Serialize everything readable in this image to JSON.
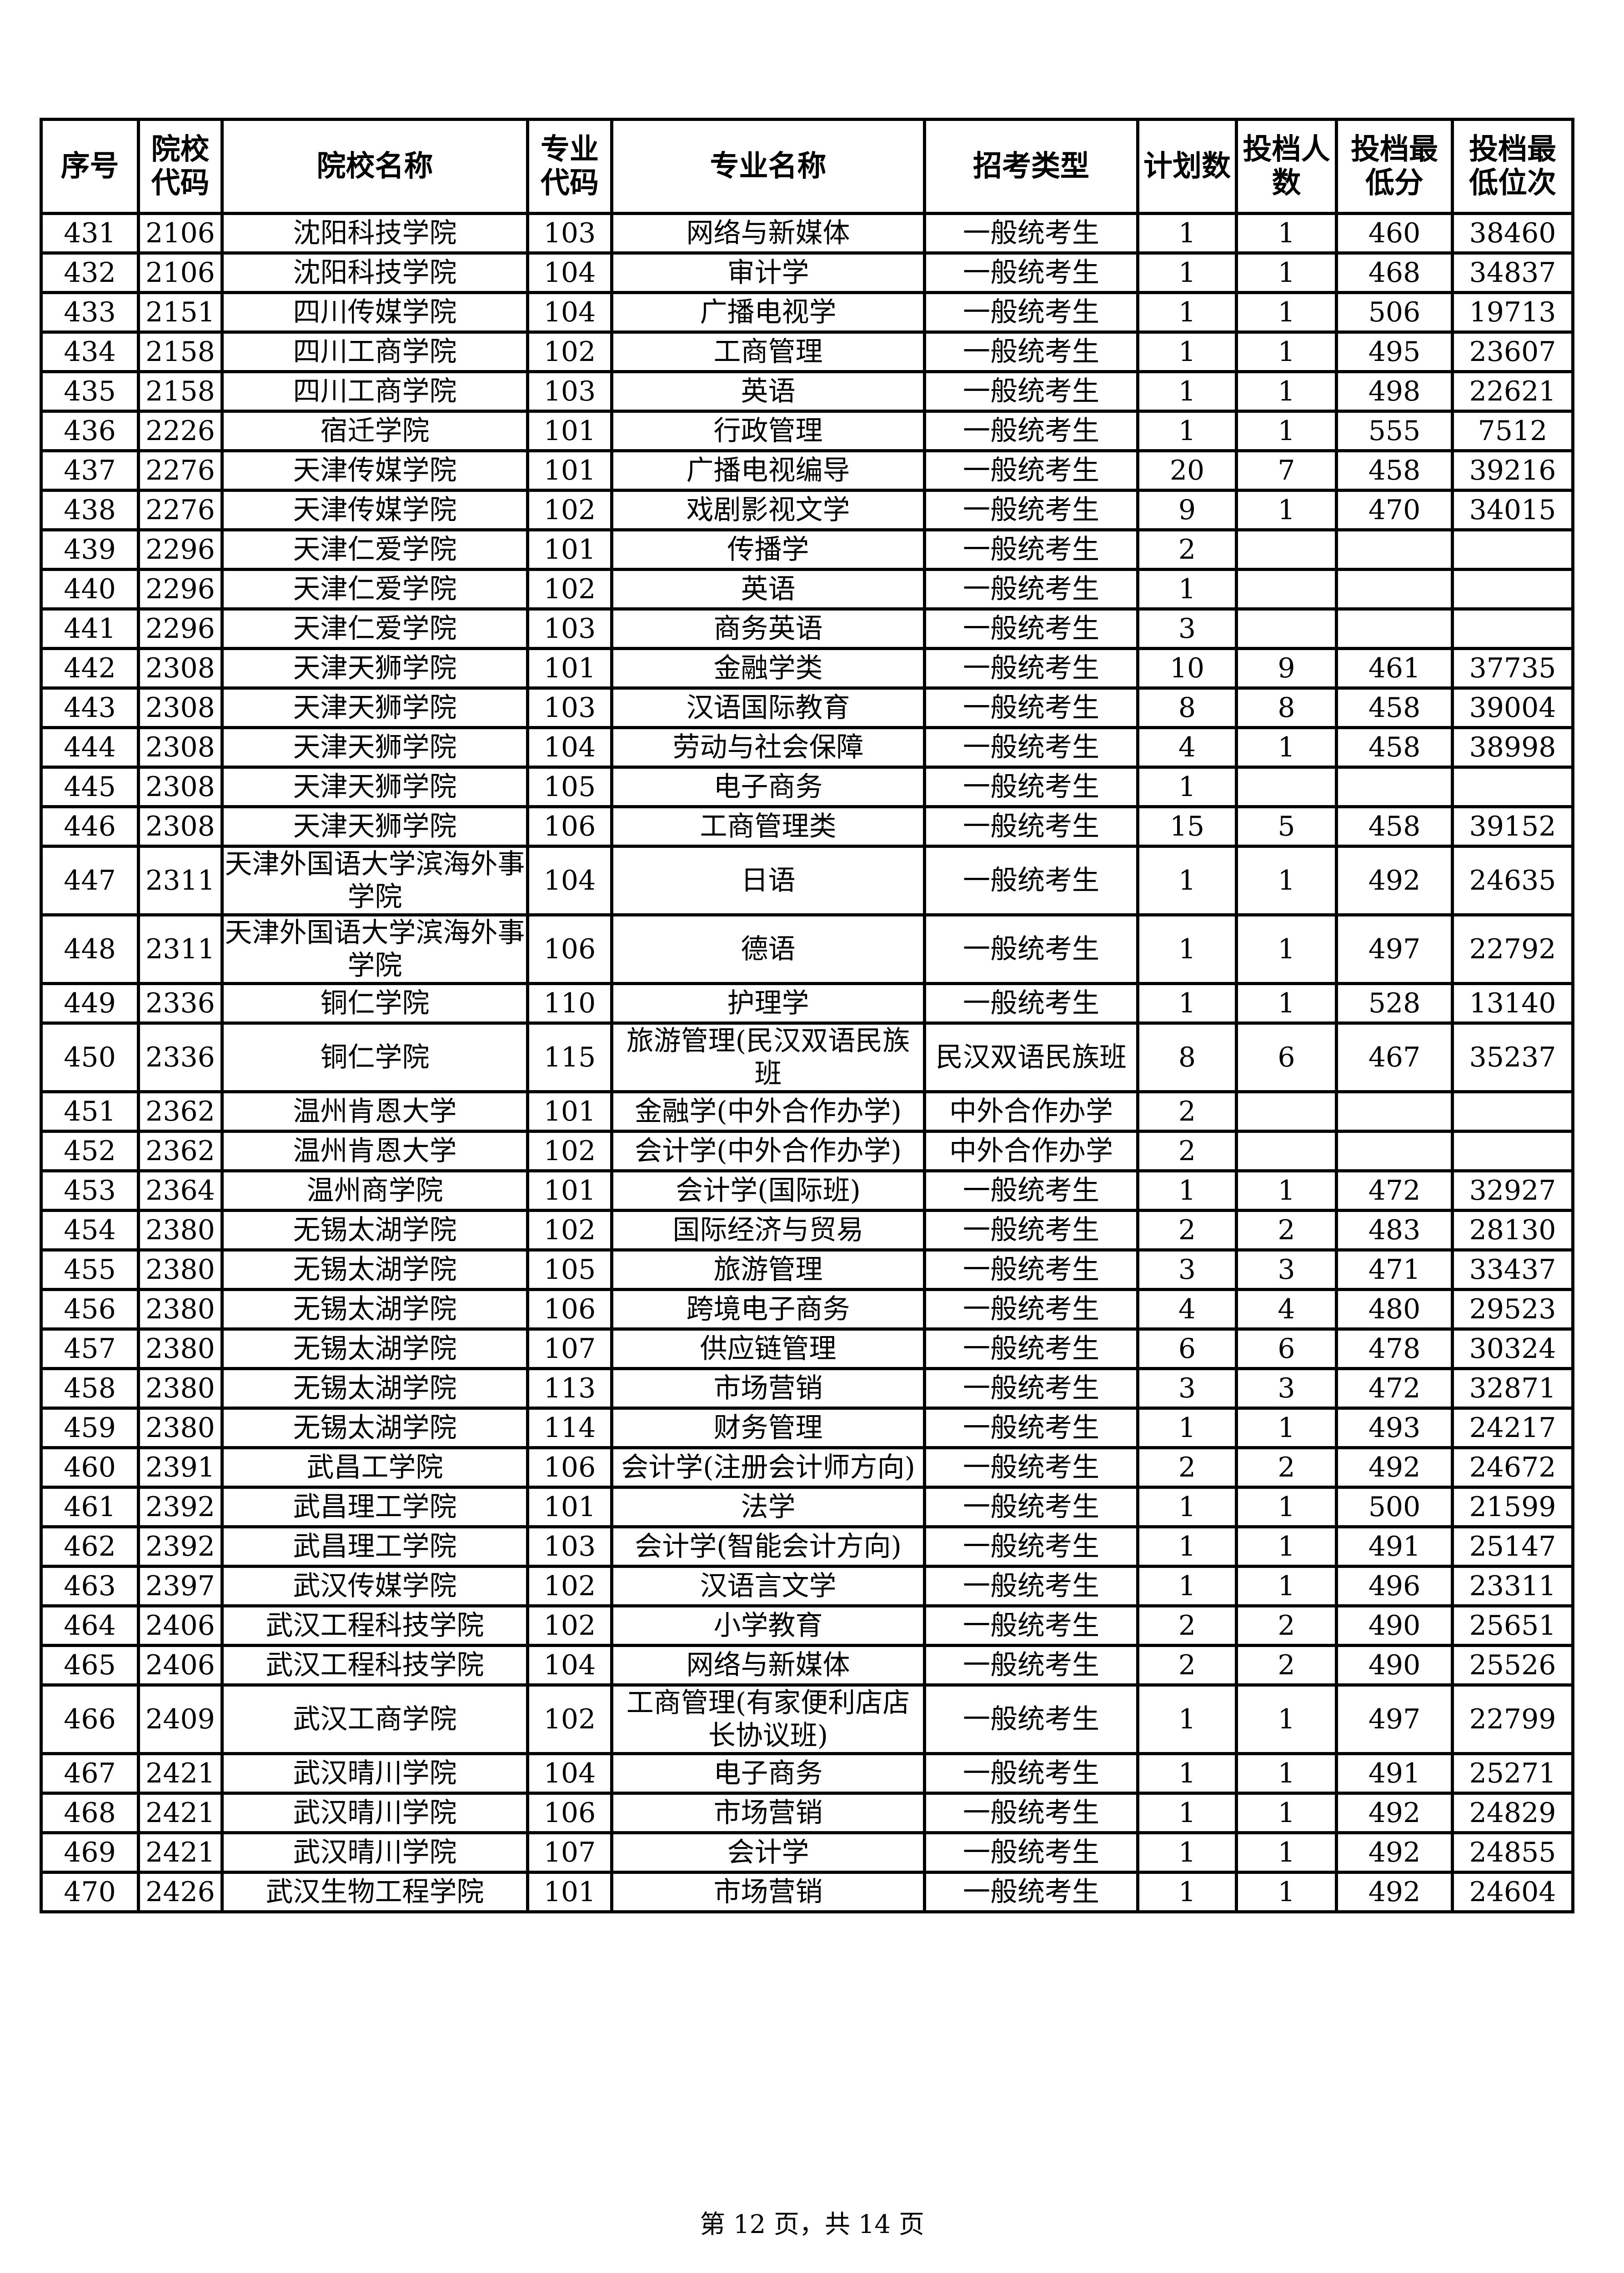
{
  "table": {
    "headers": [
      "序号",
      "院校代码",
      "院校名称",
      "专业代码",
      "专业名称",
      "招考类型",
      "计划数",
      "投档人数",
      "投档最低分",
      "投档最低位次"
    ],
    "rows": [
      [
        "431",
        "2106",
        "沈阳科技学院",
        "103",
        "网络与新媒体",
        "一般统考生",
        "1",
        "1",
        "460",
        "38460"
      ],
      [
        "432",
        "2106",
        "沈阳科技学院",
        "104",
        "审计学",
        "一般统考生",
        "1",
        "1",
        "468",
        "34837"
      ],
      [
        "433",
        "2151",
        "四川传媒学院",
        "104",
        "广播电视学",
        "一般统考生",
        "1",
        "1",
        "506",
        "19713"
      ],
      [
        "434",
        "2158",
        "四川工商学院",
        "102",
        "工商管理",
        "一般统考生",
        "1",
        "1",
        "495",
        "23607"
      ],
      [
        "435",
        "2158",
        "四川工商学院",
        "103",
        "英语",
        "一般统考生",
        "1",
        "1",
        "498",
        "22621"
      ],
      [
        "436",
        "2226",
        "宿迁学院",
        "101",
        "行政管理",
        "一般统考生",
        "1",
        "1",
        "555",
        "7512"
      ],
      [
        "437",
        "2276",
        "天津传媒学院",
        "101",
        "广播电视编导",
        "一般统考生",
        "20",
        "7",
        "458",
        "39216"
      ],
      [
        "438",
        "2276",
        "天津传媒学院",
        "102",
        "戏剧影视文学",
        "一般统考生",
        "9",
        "1",
        "470",
        "34015"
      ],
      [
        "439",
        "2296",
        "天津仁爱学院",
        "101",
        "传播学",
        "一般统考生",
        "2",
        "",
        "",
        ""
      ],
      [
        "440",
        "2296",
        "天津仁爱学院",
        "102",
        "英语",
        "一般统考生",
        "1",
        "",
        "",
        ""
      ],
      [
        "441",
        "2296",
        "天津仁爱学院",
        "103",
        "商务英语",
        "一般统考生",
        "3",
        "",
        "",
        ""
      ],
      [
        "442",
        "2308",
        "天津天狮学院",
        "101",
        "金融学类",
        "一般统考生",
        "10",
        "9",
        "461",
        "37735"
      ],
      [
        "443",
        "2308",
        "天津天狮学院",
        "103",
        "汉语国际教育",
        "一般统考生",
        "8",
        "8",
        "458",
        "39004"
      ],
      [
        "444",
        "2308",
        "天津天狮学院",
        "104",
        "劳动与社会保障",
        "一般统考生",
        "4",
        "1",
        "458",
        "38998"
      ],
      [
        "445",
        "2308",
        "天津天狮学院",
        "105",
        "电子商务",
        "一般统考生",
        "1",
        "",
        "",
        ""
      ],
      [
        "446",
        "2308",
        "天津天狮学院",
        "106",
        "工商管理类",
        "一般统考生",
        "15",
        "5",
        "458",
        "39152"
      ],
      [
        "447",
        "2311",
        "天津外国语大学滨海外事学院",
        "104",
        "日语",
        "一般统考生",
        "1",
        "1",
        "492",
        "24635"
      ],
      [
        "448",
        "2311",
        "天津外国语大学滨海外事学院",
        "106",
        "德语",
        "一般统考生",
        "1",
        "1",
        "497",
        "22792"
      ],
      [
        "449",
        "2336",
        "铜仁学院",
        "110",
        "护理学",
        "一般统考生",
        "1",
        "1",
        "528",
        "13140"
      ],
      [
        "450",
        "2336",
        "铜仁学院",
        "115",
        "旅游管理(民汉双语民族班",
        "民汉双语民族班",
        "8",
        "6",
        "467",
        "35237"
      ],
      [
        "451",
        "2362",
        "温州肯恩大学",
        "101",
        "金融学(中外合作办学)",
        "中外合作办学",
        "2",
        "",
        "",
        ""
      ],
      [
        "452",
        "2362",
        "温州肯恩大学",
        "102",
        "会计学(中外合作办学)",
        "中外合作办学",
        "2",
        "",
        "",
        ""
      ],
      [
        "453",
        "2364",
        "温州商学院",
        "101",
        "会计学(国际班)",
        "一般统考生",
        "1",
        "1",
        "472",
        "32927"
      ],
      [
        "454",
        "2380",
        "无锡太湖学院",
        "102",
        "国际经济与贸易",
        "一般统考生",
        "2",
        "2",
        "483",
        "28130"
      ],
      [
        "455",
        "2380",
        "无锡太湖学院",
        "105",
        "旅游管理",
        "一般统考生",
        "3",
        "3",
        "471",
        "33437"
      ],
      [
        "456",
        "2380",
        "无锡太湖学院",
        "106",
        "跨境电子商务",
        "一般统考生",
        "4",
        "4",
        "480",
        "29523"
      ],
      [
        "457",
        "2380",
        "无锡太湖学院",
        "107",
        "供应链管理",
        "一般统考生",
        "6",
        "6",
        "478",
        "30324"
      ],
      [
        "458",
        "2380",
        "无锡太湖学院",
        "113",
        "市场营销",
        "一般统考生",
        "3",
        "3",
        "472",
        "32871"
      ],
      [
        "459",
        "2380",
        "无锡太湖学院",
        "114",
        "财务管理",
        "一般统考生",
        "1",
        "1",
        "493",
        "24217"
      ],
      [
        "460",
        "2391",
        "武昌工学院",
        "106",
        "会计学(注册会计师方向)",
        "一般统考生",
        "2",
        "2",
        "492",
        "24672"
      ],
      [
        "461",
        "2392",
        "武昌理工学院",
        "101",
        "法学",
        "一般统考生",
        "1",
        "1",
        "500",
        "21599"
      ],
      [
        "462",
        "2392",
        "武昌理工学院",
        "103",
        "会计学(智能会计方向)",
        "一般统考生",
        "1",
        "1",
        "491",
        "25147"
      ],
      [
        "463",
        "2397",
        "武汉传媒学院",
        "102",
        "汉语言文学",
        "一般统考生",
        "1",
        "1",
        "496",
        "23311"
      ],
      [
        "464",
        "2406",
        "武汉工程科技学院",
        "102",
        "小学教育",
        "一般统考生",
        "2",
        "2",
        "490",
        "25651"
      ],
      [
        "465",
        "2406",
        "武汉工程科技学院",
        "104",
        "网络与新媒体",
        "一般统考生",
        "2",
        "2",
        "490",
        "25526"
      ],
      [
        "466",
        "2409",
        "武汉工商学院",
        "102",
        "工商管理(有家便利店店长协议班)",
        "一般统考生",
        "1",
        "1",
        "497",
        "22799"
      ],
      [
        "467",
        "2421",
        "武汉晴川学院",
        "104",
        "电子商务",
        "一般统考生",
        "1",
        "1",
        "491",
        "25271"
      ],
      [
        "468",
        "2421",
        "武汉晴川学院",
        "106",
        "市场营销",
        "一般统考生",
        "1",
        "1",
        "492",
        "24829"
      ],
      [
        "469",
        "2421",
        "武汉晴川学院",
        "107",
        "会计学",
        "一般统考生",
        "1",
        "1",
        "492",
        "24855"
      ],
      [
        "470",
        "2426",
        "武汉生物工程学院",
        "101",
        "市场营销",
        "一般统考生",
        "1",
        "1",
        "492",
        "24604"
      ]
    ]
  },
  "footer": {
    "page_text": "第 12 页，共 14 页"
  }
}
